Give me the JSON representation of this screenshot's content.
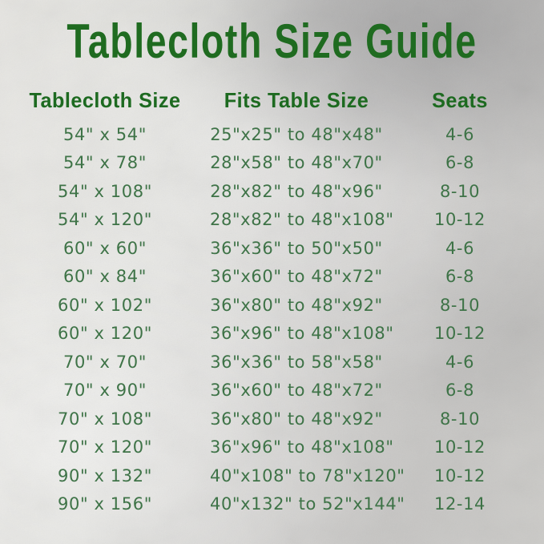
{
  "title": "Tablecloth Size Guide",
  "colors": {
    "title_green": "#1f6b20",
    "header_green": "#1d6a20",
    "data_green": "#3e7347",
    "background_silver": "#d6d5d2"
  },
  "table": {
    "headers": [
      "Tablecloth Size",
      "Fits Table Size",
      "Seats"
    ],
    "rows": [
      [
        "54\" x 54\"",
        "25\"x25\" to 48\"x48\"",
        "4-6"
      ],
      [
        "54\" x 78\"",
        "28\"x58\" to 48\"x70\"",
        "6-8"
      ],
      [
        "54\" x 108\"",
        "28\"x82\" to 48\"x96\"",
        "8-10"
      ],
      [
        "54\" x 120\"",
        "28\"x82\" to 48\"x108\"",
        "10-12"
      ],
      [
        "60\" x 60\"",
        "36\"x36\" to 50\"x50\"",
        "4-6"
      ],
      [
        "60\" x 84\"",
        "36\"x60\" to 48\"x72\"",
        "6-8"
      ],
      [
        "60\" x 102\"",
        "36\"x80\" to 48\"x92\"",
        "8-10"
      ],
      [
        "60\" x 120\"",
        "36\"x96\" to 48\"x108\"",
        "10-12"
      ],
      [
        "70\" x 70\"",
        "36\"x36\" to 58\"x58\"",
        "4-6"
      ],
      [
        "70\" x 90\"",
        "36\"x60\" to 48\"x72\"",
        "6-8"
      ],
      [
        "70\" x 108\"",
        "36\"x80\" to 48\"x92\"",
        "8-10"
      ],
      [
        "70\" x 120\"",
        "36\"x96\" to 48\"x108\"",
        "10-12"
      ],
      [
        "90\" x 132\"",
        "40\"x108\" to 78\"x120\"",
        "10-12"
      ],
      [
        "90\" x 156\"",
        "40\"x132\" to 52\"x144\"",
        "12-14"
      ]
    ]
  }
}
